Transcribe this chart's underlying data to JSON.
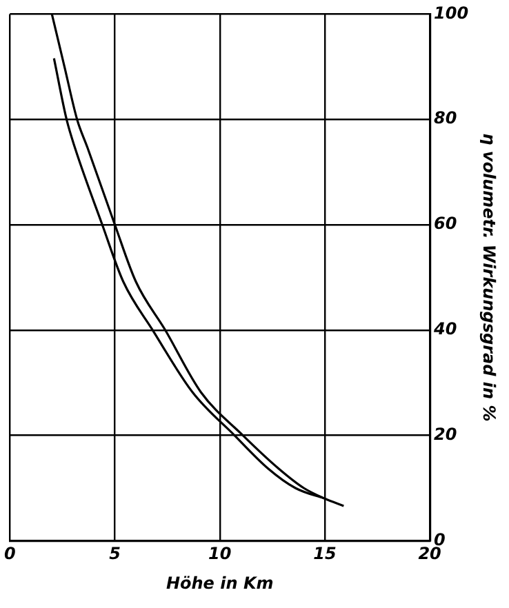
{
  "chart_data": {
    "type": "line",
    "xlabel": "Höhe in Km",
    "ylabel": "η volumetr. Wirkungsgrad in %",
    "xlim": [
      0,
      20
    ],
    "xticks": [
      0,
      5,
      10,
      15,
      20
    ],
    "ylim": [
      0,
      100
    ],
    "yticks": [
      0,
      20,
      40,
      60,
      80,
      100
    ],
    "grid": true,
    "legend": false,
    "marker": "none",
    "line_style": "solid",
    "series": [
      {
        "color": "#000000",
        "x": [
          2.0,
          2.6,
          3.2,
          3.7,
          5.0,
          6.0,
          7.4,
          9.1,
          11.1,
          12.8,
          14.0,
          15.0,
          15.9
        ],
        "values": [
          100,
          90,
          80,
          74.6,
          60,
          49.2,
          40,
          28.2,
          20,
          13.7,
          10,
          8,
          6.6
        ]
      },
      {
        "color": "#000000",
        "x": [
          2.1,
          2.7,
          3.1,
          4.4,
          5.4,
          6.8,
          8.7,
          10.7,
          12.3,
          13.6,
          15.0
        ],
        "values": [
          91.6,
          80,
          74.6,
          60,
          49.2,
          40,
          28.2,
          20,
          13.7,
          10,
          8
        ]
      }
    ]
  }
}
